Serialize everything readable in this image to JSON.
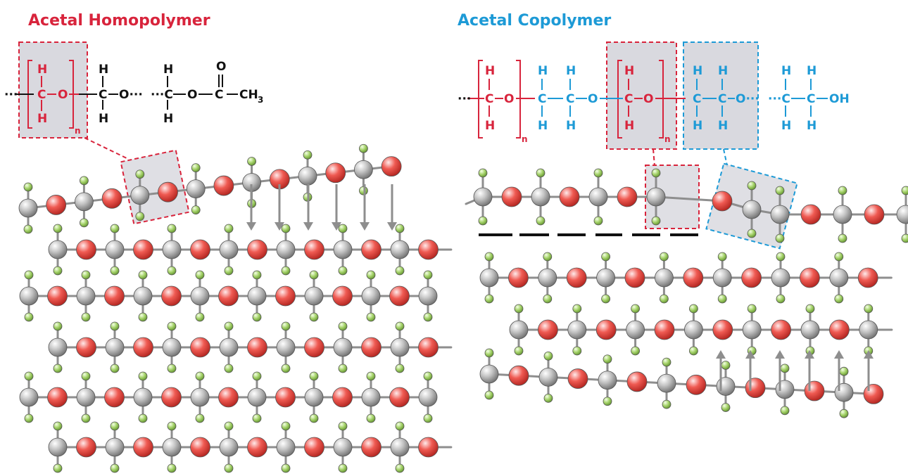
{
  "colors": {
    "homopolymer": "#d8243c",
    "copolymer": "#1d9ad6",
    "text_black": "#111111",
    "carbon": "#b5b5b5",
    "oxygen": "#e8504a",
    "hydrogen": "#9ccd62",
    "bond": "#8e8e8e",
    "highlight_fill": "#d9d9df"
  },
  "icons": {
    "carbon_atom": "grey-sphere-icon",
    "oxygen_atom": "red-sphere-icon",
    "hydrogen_atom": "green-sphere-icon",
    "direction": "arrow-icon"
  },
  "homopolymer": {
    "title": "Acetal Homopolymer",
    "formula": {
      "chain_start": "···",
      "H": "H",
      "C": "C",
      "O": "O",
      "repeat_subscript": "n",
      "chain_cont": "O···",
      "end_start": "···C",
      "carbonyl_O": "O",
      "methyl": "CH",
      "methyl_subscript": "3"
    }
  },
  "copolymer": {
    "title": "Acetal Copolymer",
    "formula": {
      "chain_start": "···",
      "H": "H",
      "C": "C",
      "O": "O",
      "repeat_subscript": "n",
      "break": "O···",
      "end_start": "···C",
      "hydroxyl": "OH"
    }
  }
}
